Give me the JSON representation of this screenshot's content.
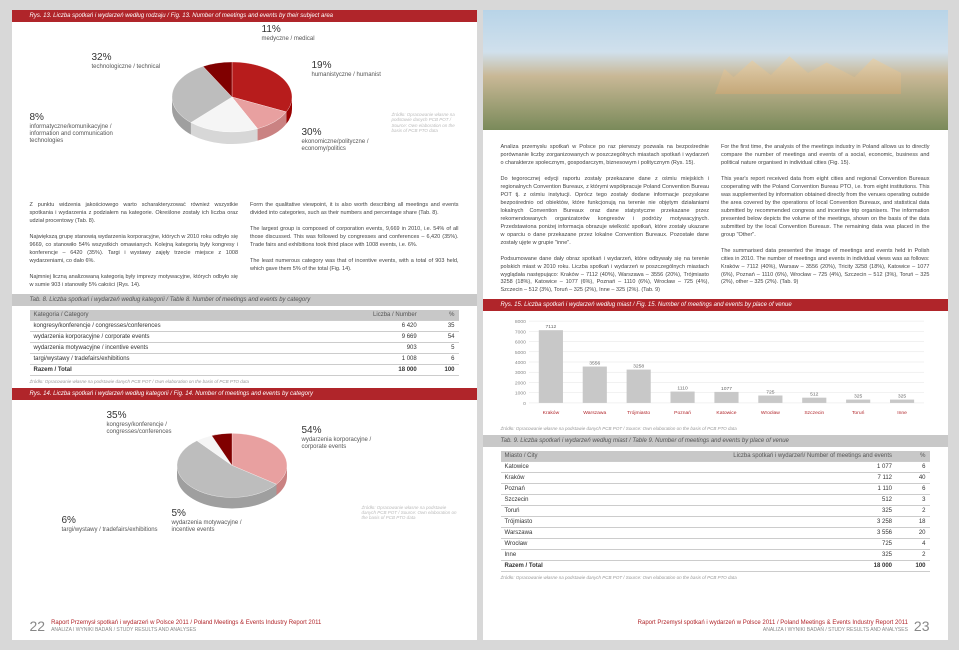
{
  "colors": {
    "brand_red": "#b0252a",
    "gray_bar": "#c8c8c8",
    "text": "#333333",
    "muted": "#888888"
  },
  "left": {
    "fig13_bar": "Rys. 13. Liczba spotkań i wydarzeń według rodzaju / Fig. 13. Number of meetings and events by their subject area",
    "pie1": {
      "slices": [
        {
          "pct": "32%",
          "label": "technologiczne / technical",
          "color": "#b71c1c",
          "value": 32
        },
        {
          "pct": "11%",
          "label": "medyczne / medical",
          "color": "#e8a0a0",
          "value": 11
        },
        {
          "pct": "19%",
          "label": "humanistyczne / humanist",
          "color": "#f5f5f5",
          "value": 19
        },
        {
          "pct": "30%",
          "label": "ekonomiczne/polityczne / economy/politics",
          "color": "#bdbdbd",
          "value": 30
        },
        {
          "pct": "8%",
          "label": "informatyczne/komunikacyjne / information and communication technologies",
          "color": "#800000",
          "value": 8
        }
      ],
      "source": "Źródło: Opracowanie własne na podstawie danych PCB POT / Source: Own elaboration on the basis of PCB PTO data"
    },
    "paras_left": [
      "Z punktu widzenia jakościowego warto scharakteryzować również wszystkie spotkania i wydarzenia z podziałem na kategorie. Określone zostały ich liczba oraz udział procentowy (Tab. 8).",
      "Największą grupę stanowią wydarzenia korporacyjne, których w 2010 roku odbyło się 9669, co stanowiło 54% wszystkich omawianych. Kolejną kategorią były kongresy i konferencje – 6420 (35%). Targi i wystawy zajęły trzecie miejsce z 1008 wydarzeniami, co dało 6%.",
      "Najmniej liczną analizowaną kategorią były imprezy motywacyjne, których odbyło się w sumie 903 i stanowiły 5% całości (Rys. 14)."
    ],
    "paras_right": [
      "Form the qualitative viewpoint, it is also worth describing all meetings and events divided into categories, such as their numbers and percentage share (Tab. 8).",
      "The largest group is composed of corporation events, 9,669 in 2010, i.e. 54% of all those discussed. This was followed by congresses and conferences – 6,420 (35%). Trade fairs and exhibitions took third place with 1008 events, i.e. 6%.",
      "The least numerous category was that of incentive events, with a total of 903 held, which gave them 5% of the total (Fig. 14)."
    ],
    "tab8_bar": "Tab. 8. Liczba spotkań i wydarzeń według kategorii / Table 8. Number of meetings and events by category",
    "tab8": {
      "headers": [
        "Kategoria / Category",
        "Liczba / Number",
        "%"
      ],
      "rows": [
        [
          "kongresy/konferencje / congresses/conferences",
          "6 420",
          "35"
        ],
        [
          "wydarzenia korporacyjne / corporate events",
          "9 669",
          "54"
        ],
        [
          "wydarzenia motywacyjne / incentive events",
          "903",
          "5"
        ],
        [
          "targi/wystawy / tradefairs/exhibitions",
          "1 008",
          "6"
        ],
        [
          "Razem / Total",
          "18 000",
          "100"
        ]
      ]
    },
    "source8": "Źródło: Opracowanie własne na podstawie danych PCB POT / Own elaboration on the basis of PCB PTO data",
    "fig14_bar": "Rys. 14. Liczba spotkań i wydarzeń według kategorii / Fig. 14. Number of meetings and events by category",
    "pie2": {
      "slices": [
        {
          "pct": "35%",
          "label": "kongresy/konferencje / congresses/conferences",
          "color": "#e8a0a0",
          "value": 35
        },
        {
          "pct": "54%",
          "label": "wydarzenia korporacyjne / corporate events",
          "color": "#bdbdbd",
          "value": 54
        },
        {
          "pct": "5%",
          "label": "wydarzenia motywacyjne / incentive events",
          "color": "#f5f5f5",
          "value": 5
        },
        {
          "pct": "6%",
          "label": "targi/wystawy / tradefairs/exhibitions",
          "color": "#800000",
          "value": 6
        }
      ],
      "source": "Źródło: Opracowanie własne na podstawie danych PCB POT / Source: Own elaboration on the basis of PCB PTO data"
    },
    "page_num": "22"
  },
  "right": {
    "paras_left": [
      "Analiza przemysłu spotkań w Polsce po raz pierwszy pozwala na bezpośrednie porównanie liczby zorganizowanych w poszczególnych miastach spotkań i wydarzeń o charakterze społecznym, gospodarczym, biznesowym i politycznym (Rys. 15).",
      "Do tegorocznej edycji raportu zostały przekazane dane z ośmiu miejskich i regionalnych Convention Bureaux, z którymi współpracuje Poland Convention Bureau POT tj. z ośmiu instytucji. Oprócz tego zostały dodane informacje pozyskane bezpośrednio od obiektów, które funkcjonują na terenie nie objętym działaniami lokalnych Convention Bureaux oraz dane statystyczne przekazane przez rekomendowanych organizatorów kongresów i podróży motywacyjnych. Przedstawiona poniżej informacja obrazuje wielkość spotkań, które zostały ukazane w oparciu o dane przekazane przez lokalne Convention Bureaux. Pozostałe dane zostały ujęte w grupie \"inne\".",
      "Podsumowane dane dały obraz spotkań i wydarzeń, które odbywały się na terenie polskich miast w 2010 roku. Liczba spotkań i wydarzeń w poszczególnych miastach wyglądała następująco: Kraków – 7112 (40%), Warszawa – 3556 (20%), Trójmiasto 3258 (18%), Katowice – 1077 (6%), Poznań – 1110 (6%), Wrocław – 725 (4%), Szczecin – 512 (3%), Toruń – 325 (2%), Inne – 325 (2%). (Tab. 9)"
    ],
    "paras_right": [
      "For the first time, the analysis of the meetings industry in Poland allows us to directly compare the number of meetings and events of a social, economic, business and political nature organised in individual cities (Fig. 15).",
      "This year's report received data from eight cities and regional Convention Bureaux cooperating with the Poland Convention Bureau PTO, i.e. from eight institutions. This was supplemented by information obtained directly from the venues operating outside the area covered by the operations of local Convention Bureaux, and statistical data submitted by recommended congress and incentive trip organisers. The information presented below depicts the volume of the meetings, shown on the basis of the data submitted by the local Convention Bureaux. The remaining data was placed in the group \"Other\".",
      "The summarised data presented the image of meetings and events held in Polish cities in 2010. The number of meetings and events in individual views was as follows: Kraków – 7112 (40%), Warsaw – 3556 (20%), Tricity 3258 (18%), Katowice – 1077 (6%), Poznań – 1110 (6%), Wrocław – 725 (4%), Szczecin – 512 (3%), Toruń – 325 (2%), other – 325 (2%). (Tab. 9)"
    ],
    "fig15_bar": "Rys. 15. Liczba spotkań i wydarzeń według miast / Fig. 15. Number of meetings and events by place of venue",
    "barchart": {
      "ymax": 8000,
      "ystep": 1000,
      "bar_color": "#c8c8c8",
      "bars": [
        {
          "label": "Kraków",
          "value": 7112
        },
        {
          "label": "Warszawa",
          "value": 3556
        },
        {
          "label": "Trójmiasto",
          "value": 3258
        },
        {
          "label": "Poznań",
          "value": 1110
        },
        {
          "label": "Katowice",
          "value": 1077
        },
        {
          "label": "Wrocław",
          "value": 725
        },
        {
          "label": "Szczecin",
          "value": 512
        },
        {
          "label": "Toruń",
          "value": 325
        },
        {
          "label": "Inne",
          "value": 325
        }
      ]
    },
    "source15": "Źródło: Opracowanie własne na podstawie danych PCB POT / Source: Own elaboration on the basis of PCB PTO data",
    "tab9_bar": "Tab. 9. Liczba spotkań i wydarzeń według miast / Table 9. Number of meetings and events by place of venue",
    "tab9": {
      "headers": [
        "Miasto / City",
        "Liczba spotkań i wydarzeń/ Number of meetings and events",
        "%"
      ],
      "rows": [
        [
          "Katowice",
          "1 077",
          "6"
        ],
        [
          "Kraków",
          "7 112",
          "40"
        ],
        [
          "Poznań",
          "1 110",
          "6"
        ],
        [
          "Szczecin",
          "512",
          "3"
        ],
        [
          "Toruń",
          "325",
          "2"
        ],
        [
          "Trójmiasto",
          "3 258",
          "18"
        ],
        [
          "Warszawa",
          "3 556",
          "20"
        ],
        [
          "Wrocław",
          "725",
          "4"
        ],
        [
          "Inne",
          "325",
          "2"
        ],
        [
          "Razem / Total",
          "18 000",
          "100"
        ]
      ]
    },
    "source9": "Źródło: Opracowanie własne na podstawie danych PCB POT / Source: Own elaboration on the basis of PCB PTO data",
    "page_num": "23"
  },
  "footer": {
    "title": "Raport Przemysł spotkań i wydarzeń w Polsce 2011 / Poland Meetings & Events Industry Report 2011",
    "sub": "ANALIZA I WYNIKI BADAŃ / STUDY RESULTS AND ANALYSES"
  }
}
